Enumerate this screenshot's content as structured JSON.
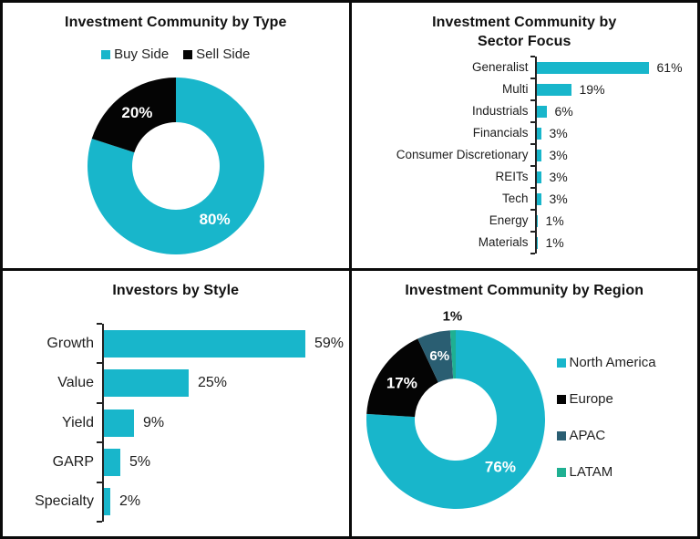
{
  "colors": {
    "cyan": "#18b6cb",
    "black": "#040404",
    "apac": "#2a5e72",
    "latam": "#1fb092",
    "text": "#1d1d1d"
  },
  "chart_data": [
    {
      "type": "donut",
      "title": "Investment Community by Type",
      "categories": [
        "Buy Side",
        "Sell Side"
      ],
      "values": [
        80,
        20
      ],
      "data_labels": [
        "80%",
        "20%"
      ],
      "colors": [
        "#18b6cb",
        "#040404"
      ],
      "legend_position": "top",
      "label_color_inside": "#ffffff"
    },
    {
      "type": "bar",
      "orientation": "horizontal",
      "title": "Investment Community by Sector Focus",
      "categories": [
        "Generalist",
        "Multi",
        "Industrials",
        "Financials",
        "Consumer Discretionary",
        "REITs",
        "Tech",
        "Energy",
        "Materials"
      ],
      "values": [
        61,
        19,
        6,
        3,
        3,
        3,
        3,
        1,
        1
      ],
      "data_labels": [
        "61%",
        "19%",
        "6%",
        "3%",
        "3%",
        "3%",
        "3%",
        "1%",
        "1%"
      ],
      "bar_color": "#18b6cb",
      "legend_position": "none",
      "grid": false
    },
    {
      "type": "bar",
      "orientation": "horizontal",
      "title": "Investors by Style",
      "categories": [
        "Growth",
        "Value",
        "Yield",
        "GARP",
        "Specialty"
      ],
      "values": [
        59,
        25,
        9,
        5,
        2
      ],
      "data_labels": [
        "59%",
        "25%",
        "9%",
        "5%",
        "2%"
      ],
      "bar_color": "#18b6cb",
      "legend_position": "none",
      "grid": false
    },
    {
      "type": "donut",
      "title": "Investment Community by Region",
      "categories": [
        "North America",
        "Europe",
        "APAC",
        "LATAM"
      ],
      "values": [
        76,
        17,
        6,
        1
      ],
      "data_labels": [
        "76%",
        "17%",
        "6%",
        "1%"
      ],
      "colors": [
        "#18b6cb",
        "#040404",
        "#2a5e72",
        "#1fb092"
      ],
      "legend_position": "right",
      "label_color_inside": "#ffffff",
      "label_color_outside": "#111111"
    }
  ]
}
